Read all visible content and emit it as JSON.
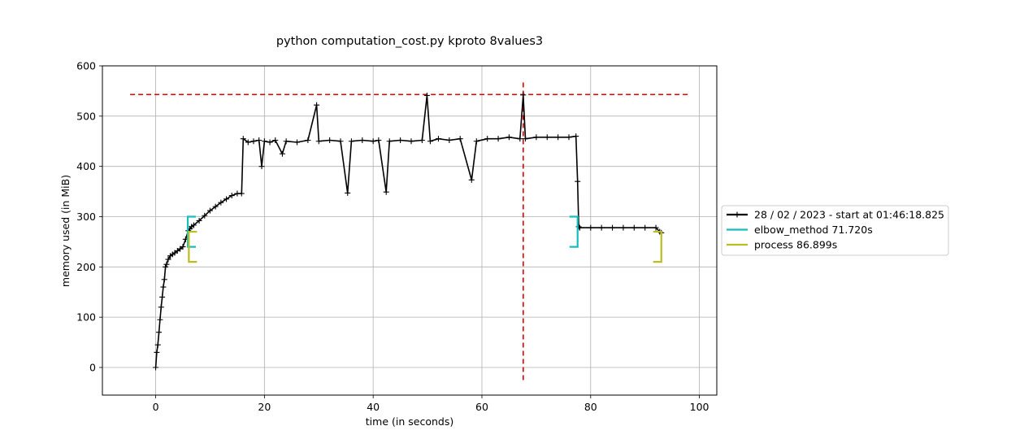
{
  "chart_data": {
    "type": "line",
    "title": "python computation_cost.py kproto 8values3",
    "xlabel": "time (in seconds)",
    "ylabel": "memory used (in MiB)",
    "xlim": [
      -9.8,
      103.2
    ],
    "ylim": [
      -55,
      600
    ],
    "xticks": [
      0,
      20,
      40,
      60,
      80,
      100
    ],
    "yticks": [
      0,
      100,
      200,
      300,
      400,
      500,
      600
    ],
    "grid": true,
    "legend_position": "right, outside plot",
    "series": [
      {
        "name": "28 / 02 / 2023 - start at 01:46:18.825",
        "color": "#000000",
        "marker": "plus",
        "x": [
          0.0,
          0.2,
          0.4,
          0.6,
          0.8,
          1.0,
          1.2,
          1.4,
          1.6,
          1.8,
          2.0,
          2.3,
          2.7,
          3.1,
          3.5,
          4.0,
          4.5,
          5.0,
          5.5,
          6.0,
          6.3,
          6.6,
          7.0,
          8.0,
          9.0,
          10.0,
          11.0,
          12.0,
          13.0,
          14.0,
          15.0,
          15.8,
          16.1,
          17.0,
          18.0,
          19.0,
          19.5,
          20.0,
          21.0,
          22.0,
          23.3,
          24.0,
          26.0,
          28.0,
          29.6,
          30.0,
          32.0,
          34.0,
          35.3,
          36.0,
          38.0,
          40.0,
          41.0,
          42.4,
          43.0,
          45.0,
          47.0,
          49.0,
          49.9,
          50.5,
          52.0,
          54.0,
          56.0,
          58.1,
          59.0,
          61.0,
          63.0,
          65.0,
          67.0,
          67.6,
          68.0,
          70.0,
          72.0,
          74.0,
          76.0,
          77.3,
          77.6,
          77.8,
          78.0,
          80.0,
          82.0,
          84.0,
          86.0,
          88.0,
          90.0,
          92.0,
          92.7,
          93.0
        ],
        "y": [
          0,
          30,
          45,
          70,
          95,
          120,
          140,
          160,
          175,
          200,
          205,
          215,
          222,
          225,
          228,
          232,
          236,
          240,
          255,
          272,
          276,
          280,
          283,
          292,
          302,
          312,
          320,
          328,
          335,
          342,
          346,
          346,
          455,
          448,
          450,
          452,
          400,
          450,
          448,
          452,
          425,
          450,
          448,
          452,
          522,
          450,
          452,
          450,
          347,
          450,
          452,
          450,
          452,
          349,
          450,
          452,
          450,
          452,
          541,
          450,
          455,
          452,
          455,
          373,
          450,
          455,
          455,
          458,
          455,
          542,
          455,
          458,
          458,
          458,
          458,
          460,
          370,
          280,
          278,
          278,
          278,
          278,
          278,
          278,
          278,
          278,
          270,
          268
        ]
      },
      {
        "name": "elbow_method 71.720s",
        "color": "#17bebe",
        "marker": "bracket",
        "x_start": 5.9,
        "x_end": 77.6,
        "y_low": 240,
        "y_high": 300
      },
      {
        "name": "process 86.899s",
        "color": "#bcbd22",
        "marker": "bracket",
        "x_start": 6.1,
        "x_end": 93.0,
        "y_low": 210,
        "y_high": 270
      }
    ],
    "reference_lines": [
      {
        "orientation": "horizontal",
        "value": 543,
        "from": -4.7,
        "to": 98.0,
        "color": "#dd0000",
        "style": "dashed"
      },
      {
        "orientation": "vertical",
        "value": 67.6,
        "from": -25,
        "to": 570,
        "color": "#dd0000",
        "style": "dashed"
      }
    ]
  }
}
